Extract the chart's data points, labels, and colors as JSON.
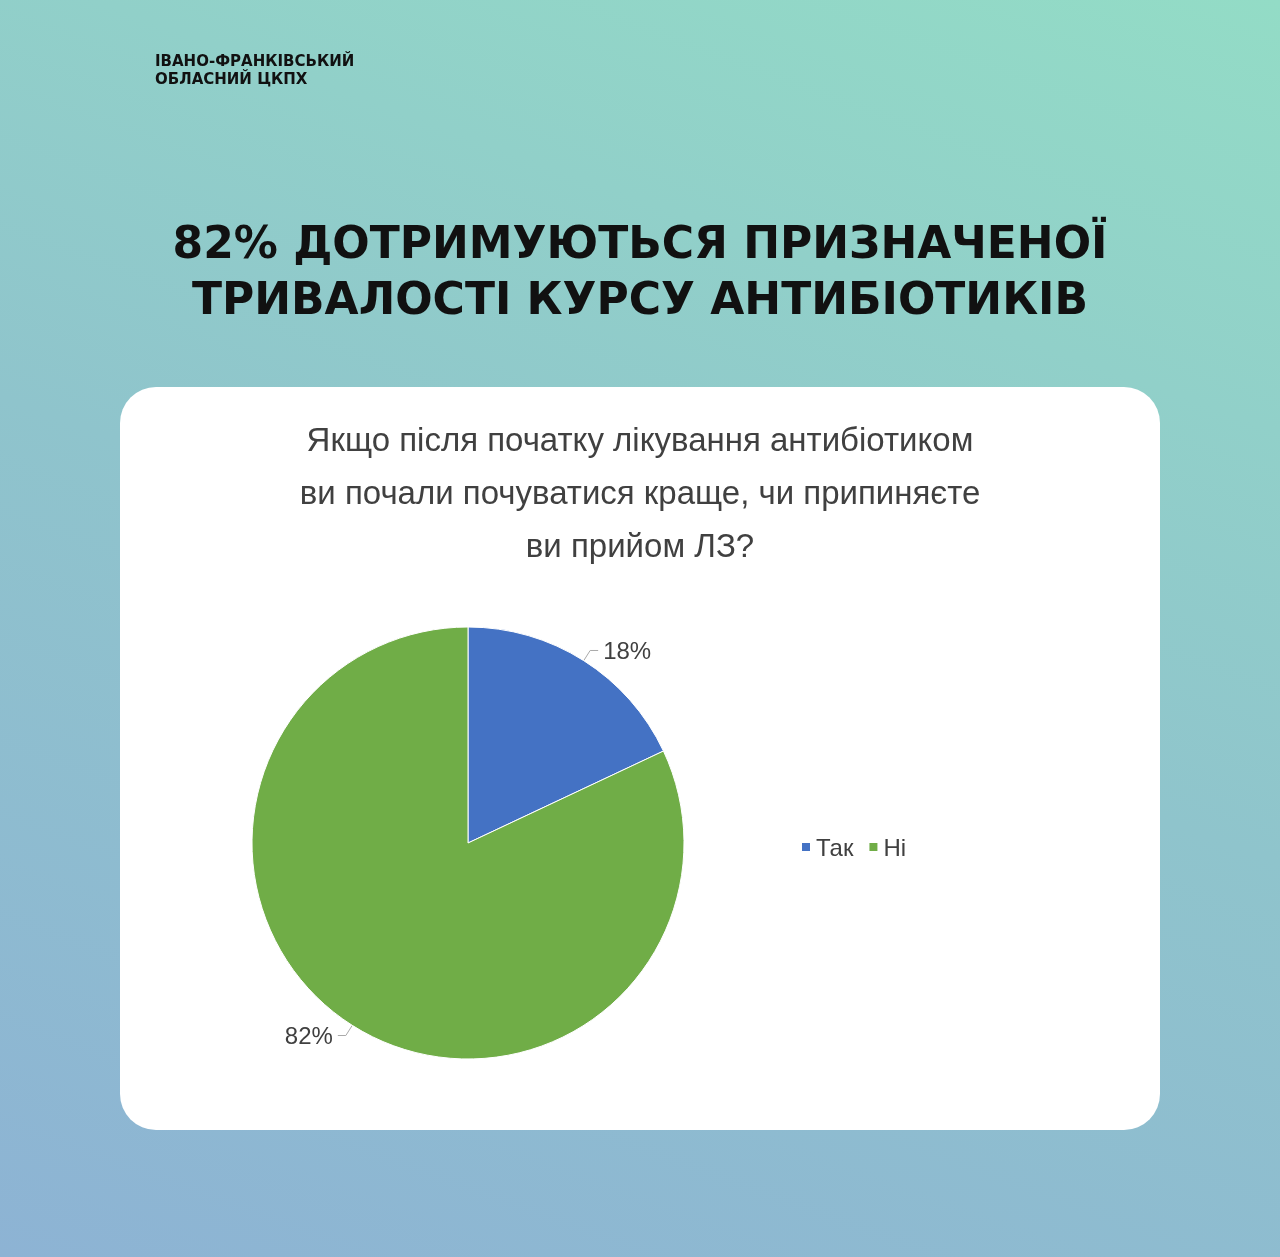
{
  "chart_data": {
    "type": "pie",
    "title": "82% ДОТРИМУЮТЬСЯ ПРИЗНАЧЕНОЇ ТРИВАЛОСТІ КУРСУ АНТИБІОТИКІВ",
    "subtitle": "Якщо після початку лікування антибіотиком ви почали почуватися краще, чи припиняєте ви прийом ЛЗ?",
    "annotations": [
      "ІВАНО-ФРАНКІВСЬКИЙ ОБЛАСНИЙ ЦКПХ"
    ],
    "categories": [
      "Так",
      "Ні"
    ],
    "values": [
      18,
      82
    ],
    "value_labels": [
      "18%",
      "82%"
    ],
    "colors": [
      "#4472c4",
      "#70ad47"
    ],
    "legend": "right"
  }
}
